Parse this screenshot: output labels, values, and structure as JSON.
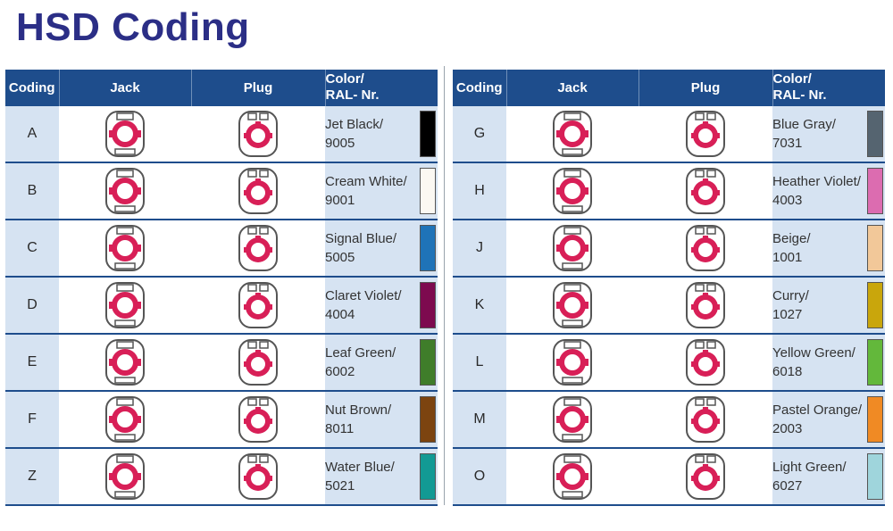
{
  "title": "HSD Coding",
  "headers": {
    "coding": "Coding",
    "jack": "Jack",
    "plug": "Plug",
    "color_line1": "Color/",
    "color_line2": "RAL- Nr."
  },
  "left_rows": [
    {
      "code": "A",
      "name": "Jet Black/",
      "ral": "9005",
      "hex": "#000000"
    },
    {
      "code": "B",
      "name": "Cream White/",
      "ral": "9001",
      "hex": "#fbf8f2"
    },
    {
      "code": "C",
      "name": "Signal Blue/",
      "ral": "5005",
      "hex": "#1f73b8"
    },
    {
      "code": "D",
      "name": "Claret Violet/",
      "ral": "4004",
      "hex": "#7d0a4f"
    },
    {
      "code": "E",
      "name": "Leaf Green/",
      "ral": "6002",
      "hex": "#3f7d2a"
    },
    {
      "code": "F",
      "name": "Nut Brown/",
      "ral": "8011",
      "hex": "#7c4410"
    },
    {
      "code": "Z",
      "name": "Water Blue/",
      "ral": "5021",
      "hex": "#129a94"
    }
  ],
  "right_rows": [
    {
      "code": "G",
      "name": "Blue Gray/",
      "ral": "7031",
      "hex": "#556470"
    },
    {
      "code": "H",
      "name": "Heather Violet/",
      "ral": "4003",
      "hex": "#dc6cb0"
    },
    {
      "code": "J",
      "name": "Beige/",
      "ral": "1001",
      "hex": "#f2c899"
    },
    {
      "code": "K",
      "name": "Curry/",
      "ral": "1027",
      "hex": "#c9a60c"
    },
    {
      "code": "L",
      "name": "Yellow Green/",
      "ral": "6018",
      "hex": "#63b83b"
    },
    {
      "code": "M",
      "name": "Pastel Orange/",
      "ral": "2003",
      "hex": "#f08a24"
    },
    {
      "code": "O",
      "name": "Light Green/",
      "ral": "6027",
      "hex": "#9fd5dc"
    }
  ],
  "connector_color": "#d81f57",
  "housing_color": "#555555"
}
